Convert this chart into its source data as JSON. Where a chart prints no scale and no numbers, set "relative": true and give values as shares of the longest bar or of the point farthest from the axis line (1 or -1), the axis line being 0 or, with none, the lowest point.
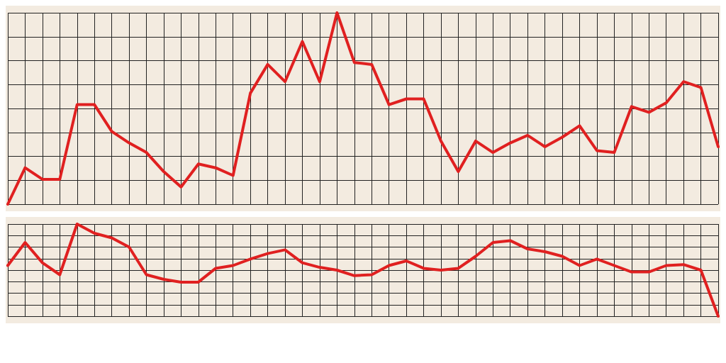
{
  "chart_data": [
    {
      "type": "line",
      "relative": true,
      "grid": true,
      "marker": "none",
      "line_style": "solid",
      "categories": [
        null,
        null,
        null,
        null,
        null,
        null,
        null,
        null,
        null,
        null,
        null,
        null,
        null,
        null,
        null,
        null,
        null,
        null,
        null,
        null,
        null,
        null,
        null,
        null,
        null,
        null,
        null,
        null,
        null,
        null,
        null,
        null,
        null,
        null,
        null,
        null,
        null,
        null,
        null,
        null,
        null,
        null
      ],
      "series": [
        {
          "color": "#e02020",
          "values": [
            0,
            0.19,
            0.13,
            0.13,
            0.52,
            0.52,
            0.38,
            0.32,
            0.27,
            0.17,
            0.09,
            0.21,
            0.19,
            0.15,
            0.58,
            0.73,
            0.64,
            0.85,
            0.64,
            1,
            0.74,
            0.73,
            0.52,
            0.55,
            0.55,
            0.33,
            0.17,
            0.33,
            0.27,
            0.32,
            0.36,
            0.3,
            0.35,
            0.41,
            0.28,
            0.27,
            0.51,
            0.48,
            0.53,
            0.64,
            0.61,
            0.3
          ]
        }
      ]
    },
    {
      "type": "line",
      "relative": true,
      "grid": true,
      "marker": "none",
      "line_style": "solid",
      "categories": [
        null,
        null,
        null,
        null,
        null,
        null,
        null,
        null,
        null,
        null,
        null,
        null,
        null,
        null,
        null,
        null,
        null,
        null,
        null,
        null,
        null,
        null,
        null,
        null,
        null,
        null,
        null,
        null,
        null,
        null,
        null,
        null,
        null,
        null,
        null,
        null,
        null,
        null,
        null,
        null,
        null,
        null
      ],
      "series": [
        {
          "color": "#e02020",
          "values": [
            0.55,
            0.8,
            0.58,
            0.45,
            1,
            0.9,
            0.85,
            0.75,
            0.45,
            0.4,
            0.37,
            0.37,
            0.52,
            0.55,
            0.62,
            0.68,
            0.72,
            0.58,
            0.53,
            0.5,
            0.44,
            0.45,
            0.55,
            0.6,
            0.52,
            0.5,
            0.52,
            0.65,
            0.8,
            0.82,
            0.73,
            0.7,
            0.65,
            0.55,
            0.62,
            0.55,
            0.48,
            0.48,
            0.55,
            0.56,
            0.5,
            0
          ]
        }
      ]
    }
  ]
}
